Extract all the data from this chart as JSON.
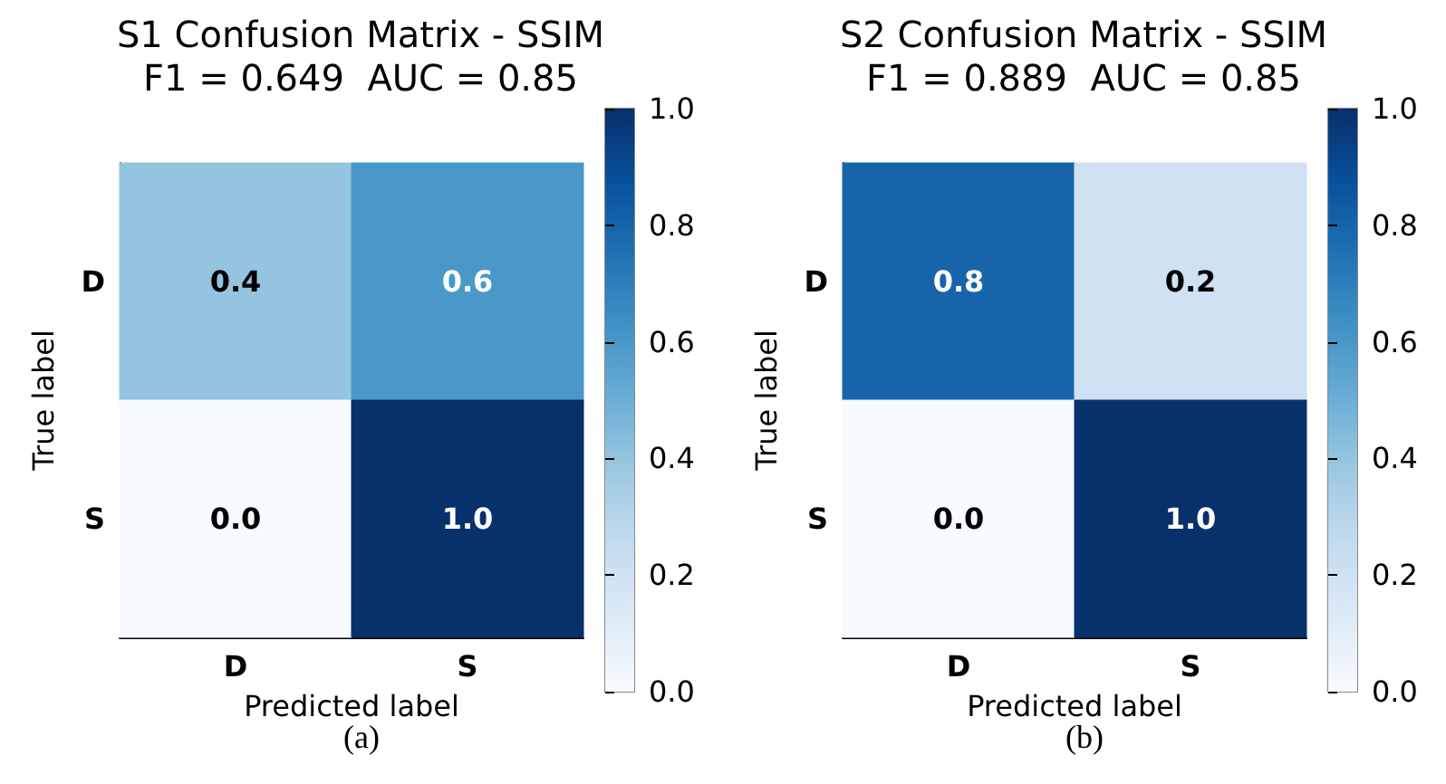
{
  "chart_data": [
    {
      "type": "heatmap",
      "title": "S1 Confusion Matrix - SSIM",
      "subtitle": "F1 = 0.649  AUC = 0.85",
      "xlabel": "Predicted label",
      "ylabel": "True label",
      "categories": [
        "D",
        "S"
      ],
      "y_categories": [
        "D",
        "S"
      ],
      "cells": [
        [
          0.4,
          0.6
        ],
        [
          0.0,
          1.0
        ]
      ],
      "cell_labels": [
        [
          "0.4",
          "0.6"
        ],
        [
          "0.0",
          "1.0"
        ]
      ],
      "clim": [
        0,
        1
      ],
      "cticks": [
        {
          "value": 0,
          "label": "0.0"
        },
        {
          "value": 0.2,
          "label": "0.2"
        },
        {
          "value": 0.4,
          "label": "0.4"
        },
        {
          "value": 0.6,
          "label": "0.6"
        },
        {
          "value": 0.8,
          "label": "0.8"
        },
        {
          "value": 1,
          "label": "1.0"
        }
      ],
      "annotations": [
        "(a)"
      ]
    },
    {
      "type": "heatmap",
      "title": "S2 Confusion Matrix - SSIM",
      "subtitle": "F1 = 0.889  AUC = 0.85",
      "xlabel": "Predicted label",
      "ylabel": "True label",
      "categories": [
        "D",
        "S"
      ],
      "y_categories": [
        "D",
        "S"
      ],
      "cells": [
        [
          0.8,
          0.2
        ],
        [
          0.0,
          1.0
        ]
      ],
      "cell_labels": [
        [
          "0.8",
          "0.2"
        ],
        [
          "0.0",
          "1.0"
        ]
      ],
      "clim": [
        0,
        1
      ],
      "cticks": [
        {
          "value": 0,
          "label": "0.0"
        },
        {
          "value": 0.2,
          "label": "0.2"
        },
        {
          "value": 0.4,
          "label": "0.4"
        },
        {
          "value": 0.6,
          "label": "0.6"
        },
        {
          "value": 0.8,
          "label": "0.8"
        },
        {
          "value": 1,
          "label": "1.0"
        }
      ],
      "annotations": [
        "(b)"
      ]
    }
  ]
}
